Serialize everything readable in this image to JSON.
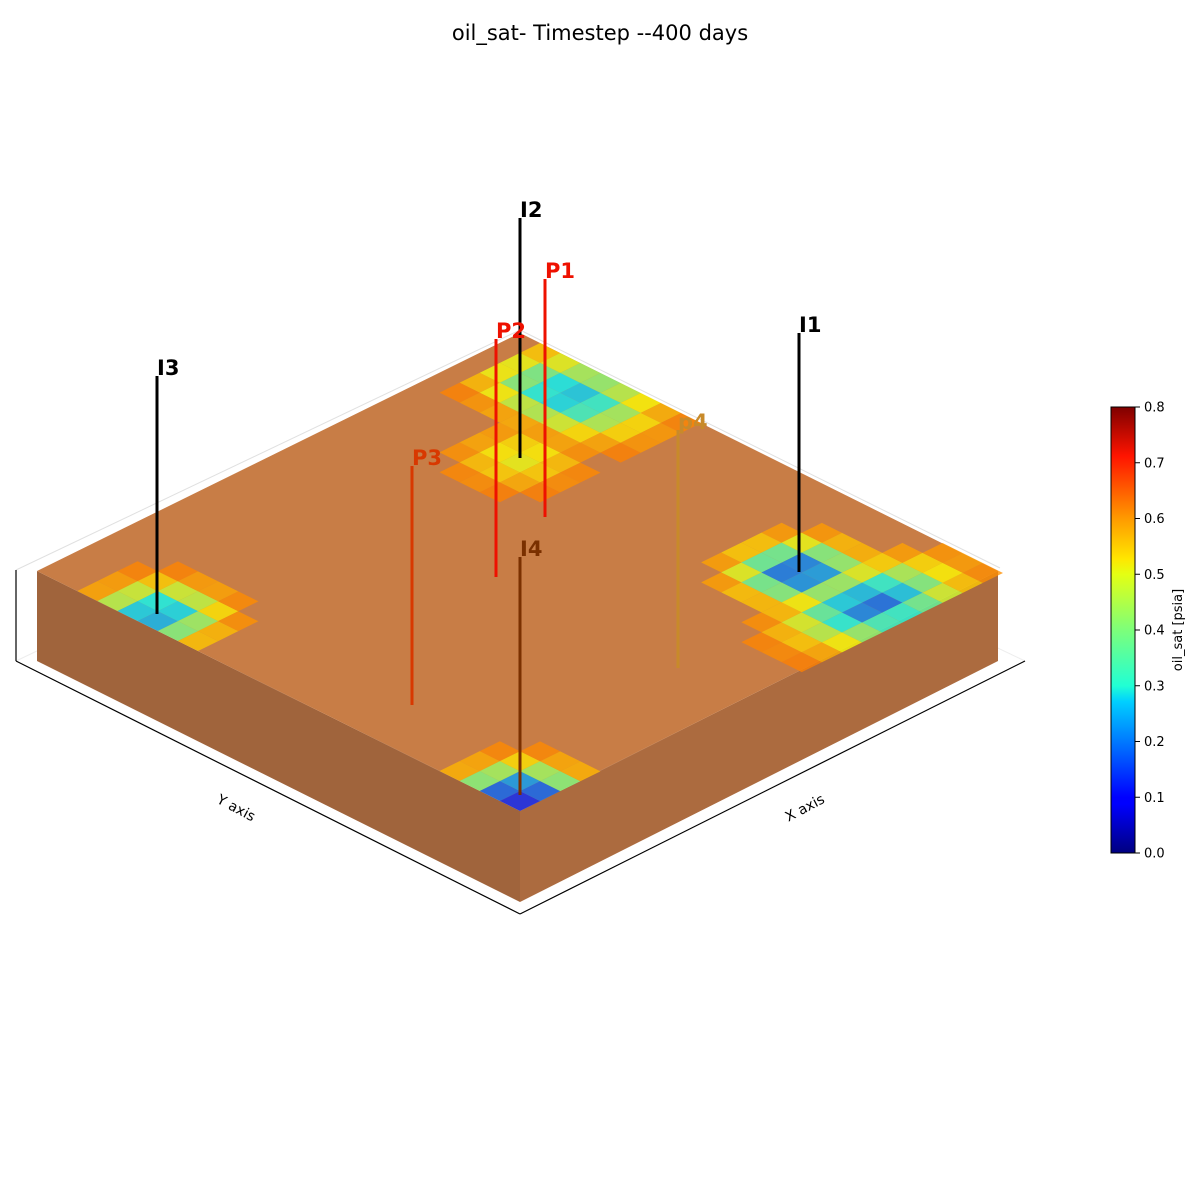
{
  "chart_data": {
    "type": "heatmap",
    "title": "oil_sat- Timestep --400 days",
    "xlabel": "X axis",
    "ylabel": "Y axis",
    "colorbar": {
      "label": "oil_sat [psia]",
      "colormap": "jet",
      "range": [
        0.0,
        0.8
      ],
      "ticks": [
        "0.0",
        "0.1",
        "0.2",
        "0.3",
        "0.4",
        "0.5",
        "0.6",
        "0.7",
        "0.8"
      ]
    },
    "background_value": 0.62,
    "grid": false,
    "wells": [
      {
        "name": "I1",
        "kind": "injector",
        "color": "#000000",
        "min_oil_sat": 0.15
      },
      {
        "name": "I2",
        "kind": "injector",
        "color": "#000000",
        "min_oil_sat": 0.48
      },
      {
        "name": "I3",
        "kind": "injector",
        "color": "#000000",
        "min_oil_sat": 0.22
      },
      {
        "name": "I4",
        "kind": "injector",
        "color": "#7a3000",
        "min_oil_sat": 0.1
      },
      {
        "name": "P1",
        "kind": "producer",
        "color": "#ee1100"
      },
      {
        "name": "P2",
        "kind": "producer",
        "color": "#ee1100"
      },
      {
        "name": "P3",
        "kind": "producer",
        "color": "#d83800"
      },
      {
        "name": "p4",
        "kind": "producer",
        "color": "#c88a2a"
      }
    ]
  }
}
